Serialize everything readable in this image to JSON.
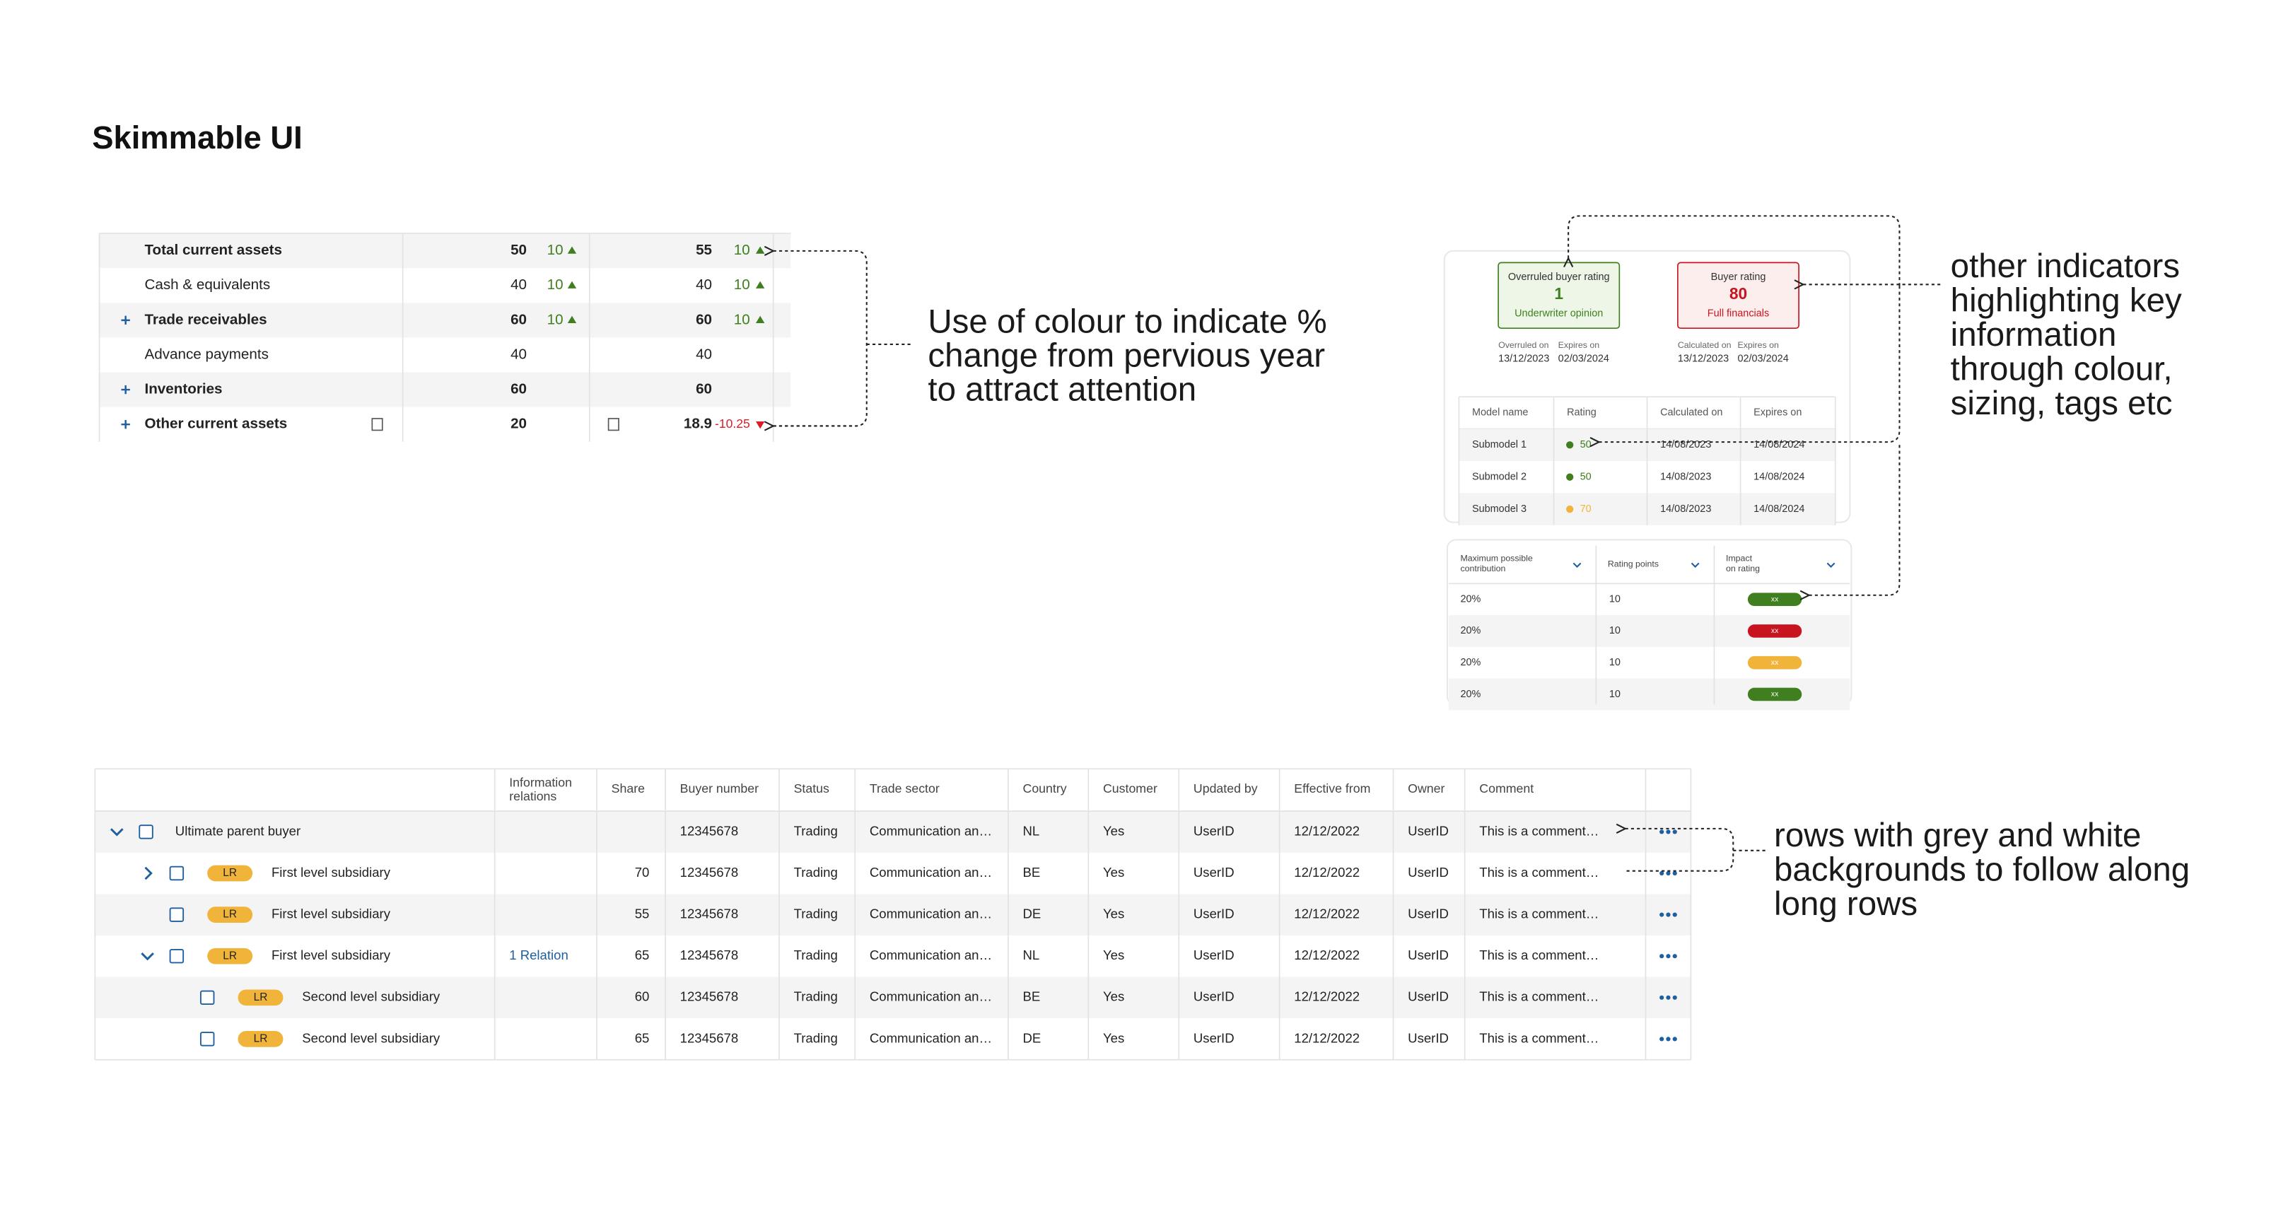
{
  "title": "Skimmable UI",
  "annotations": {
    "colour": [
      "Use of colour to indicate %",
      "change from pervious year",
      "to attract attention"
    ],
    "indicators": [
      "other indicators",
      "highlighting key",
      "information",
      "through colour,",
      "sizing, tags etc"
    ],
    "rows": [
      "rows with grey and white",
      "backgrounds to follow along",
      "long rows"
    ]
  },
  "financial_table": {
    "up_color": "#3f7f1f",
    "down_color": "#da1e28",
    "rows": [
      {
        "label": "Total current assets",
        "bold": true,
        "expandable": false,
        "col1": 50,
        "col1_change": 10,
        "col2": 55,
        "col2_change": 10
      },
      {
        "label": "Cash & equivalents",
        "bold": false,
        "expandable": false,
        "col1": 40,
        "col1_change": 10,
        "col2": 40,
        "col2_change": 10
      },
      {
        "label": "Trade receivables",
        "bold": true,
        "expandable": true,
        "col1": 60,
        "col1_change": 10,
        "col2": 60,
        "col2_change": 10
      },
      {
        "label": "Advance payments",
        "bold": false,
        "expandable": false,
        "col1": 40,
        "col1_change": null,
        "col2": 40,
        "col2_change": null
      },
      {
        "label": "Inventories",
        "bold": true,
        "expandable": true,
        "col1": 60,
        "col1_change": null,
        "col2": 60,
        "col2_change": null
      },
      {
        "label": "Other current assets",
        "bold": true,
        "expandable": true,
        "col1": 20,
        "col1_change": null,
        "col2": 18.9,
        "col2_change": -10.25
      }
    ]
  },
  "rating_cards": [
    {
      "label": "Overruled buyer rating",
      "value": 1,
      "source": "Underwriter opinion",
      "color": "#3f7f1f",
      "fill": "#edf6e7",
      "date1_label": "Overruled on",
      "date1": "13/12/2023",
      "date2_label": "Expires on",
      "date2": "02/03/2024"
    },
    {
      "label": "Buyer rating",
      "value": 80,
      "source": "Full financials",
      "color": "#c8141e",
      "fill": "#fdeeee",
      "date1_label": "Calculated on",
      "date1": "13/12/2023",
      "date2_label": "Expires on",
      "date2": "02/03/2024"
    }
  ],
  "submodels": {
    "headers": [
      "Model name",
      "Rating",
      "Calculated on",
      "Expires on"
    ],
    "rows": [
      {
        "name": "Submodel 1",
        "rating": 50,
        "color": "#3f7f1f",
        "calculated": "14/08/2023",
        "expires": "14/08/2024"
      },
      {
        "name": "Submodel 2",
        "rating": 50,
        "color": "#3f7f1f",
        "calculated": "14/08/2023",
        "expires": "14/08/2024"
      },
      {
        "name": "Submodel 3",
        "rating": 70,
        "color": "#f1b43a",
        "calculated": "14/08/2023",
        "expires": "14/08/2024"
      }
    ]
  },
  "contribution": {
    "headers": [
      [
        "Maximum possible",
        "contribution"
      ],
      [
        "Rating points"
      ],
      [
        "Impact",
        "on rating"
      ]
    ],
    "rows": [
      {
        "max": "20%",
        "points": 10,
        "impact": "xx",
        "color": "#3f7f1f"
      },
      {
        "max": "20%",
        "points": 10,
        "impact": "xx",
        "color": "#c8141e"
      },
      {
        "max": "20%",
        "points": 10,
        "impact": "xx",
        "color": "#f1b43a"
      },
      {
        "max": "20%",
        "points": 10,
        "impact": "xx",
        "color": "#3f7f1f"
      }
    ]
  },
  "buyers": {
    "headers": [
      [
        "Information",
        "relations"
      ],
      [
        "Share"
      ],
      [
        "Buyer number"
      ],
      [
        "Status"
      ],
      [
        "Trade sector"
      ],
      [
        "Country"
      ],
      [
        "Customer"
      ],
      [
        "Updated by"
      ],
      [
        "Effective from"
      ],
      [
        "Owner"
      ],
      [
        "Comment"
      ]
    ],
    "rows": [
      {
        "name": "Ultimate parent buyer",
        "tag": null,
        "level": 0,
        "expanded": true,
        "relations": null,
        "share": null,
        "buyer_number": 12345678,
        "status": "Trading",
        "sector": "Communication an…",
        "country": "NL",
        "customer": "Yes",
        "updated_by": "UserID",
        "effective_from": "12/12/2022",
        "owner": "UserID",
        "comment": "This is a comment…"
      },
      {
        "name": "First level subsidiary",
        "tag": "LR",
        "level": 1,
        "expanded": false,
        "relations": null,
        "share": 70,
        "buyer_number": 12345678,
        "status": "Trading",
        "sector": "Communication an…",
        "country": "BE",
        "customer": "Yes",
        "updated_by": "UserID",
        "effective_from": "12/12/2022",
        "owner": "UserID",
        "comment": "This is a comment…"
      },
      {
        "name": "First level subsidiary",
        "tag": "LR",
        "level": 1,
        "expanded": null,
        "relations": null,
        "share": 55,
        "buyer_number": 12345678,
        "status": "Trading",
        "sector": "Communication an…",
        "country": "DE",
        "customer": "Yes",
        "updated_by": "UserID",
        "effective_from": "12/12/2022",
        "owner": "UserID",
        "comment": "This is a comment…"
      },
      {
        "name": "First level subsidiary",
        "tag": "LR",
        "level": 1,
        "expanded": true,
        "relations": "1 Relation",
        "share": 65,
        "buyer_number": 12345678,
        "status": "Trading",
        "sector": "Communication an…",
        "country": "NL",
        "customer": "Yes",
        "updated_by": "UserID",
        "effective_from": "12/12/2022",
        "owner": "UserID",
        "comment": "This is a comment…"
      },
      {
        "name": "Second level subsidiary",
        "tag": "LR",
        "level": 2,
        "expanded": null,
        "relations": null,
        "share": 60,
        "buyer_number": 12345678,
        "status": "Trading",
        "sector": "Communication an…",
        "country": "BE",
        "customer": "Yes",
        "updated_by": "UserID",
        "effective_from": "12/12/2022",
        "owner": "UserID",
        "comment": "This is a comment…"
      },
      {
        "name": "Second level subsidiary",
        "tag": "LR",
        "level": 2,
        "expanded": null,
        "relations": null,
        "share": 65,
        "buyer_number": 12345678,
        "status": "Trading",
        "sector": "Communication an…",
        "country": "DE",
        "customer": "Yes",
        "updated_by": "UserID",
        "effective_from": "12/12/2022",
        "owner": "UserID",
        "comment": "This is a comment…"
      }
    ]
  }
}
